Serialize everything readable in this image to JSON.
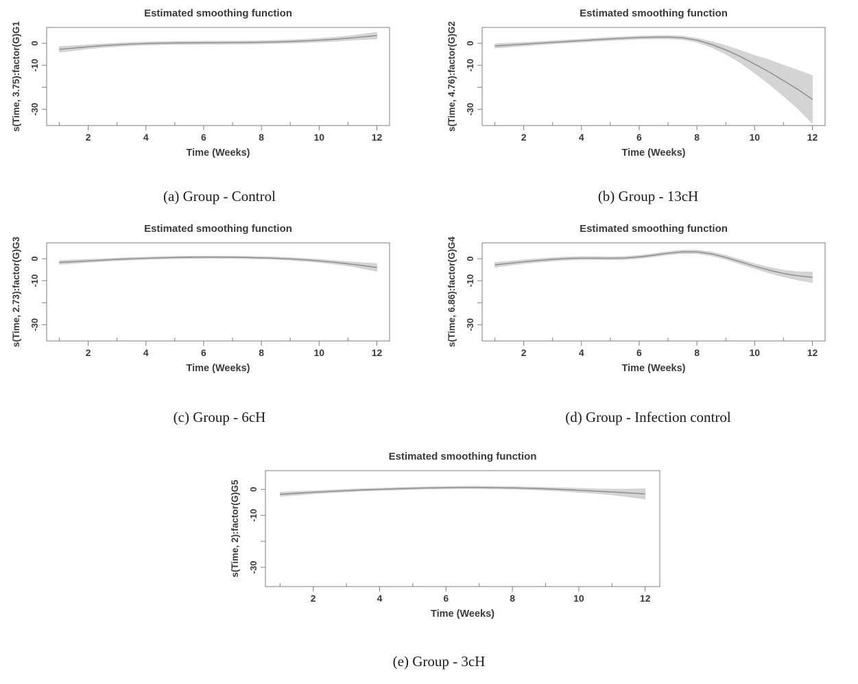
{
  "page": {
    "background": "#ffffff"
  },
  "styles": {
    "band_color": "#d4d4d4",
    "band_edge_color": "#cfcfcf",
    "line_color": "#8a8a8a",
    "axis_color": "#7d7d7d",
    "text_color": "#3a3a3a",
    "caption_color": "#1b1b1b"
  },
  "chart_data": [
    {
      "panel": "a",
      "type": "line",
      "title": "Estimated smoothing function",
      "xlabel": "Time (Weeks)",
      "ylabel": "s(Time, 3.75):factor(G)G1",
      "caption": "(a) Group - Control",
      "x": [
        1,
        1.5,
        2,
        2.5,
        3,
        3.5,
        4,
        4.5,
        5,
        5.5,
        6,
        6.5,
        7,
        7.5,
        8,
        8.5,
        9,
        9.5,
        10,
        10.5,
        11,
        11.5,
        12
      ],
      "y": [
        -2.8,
        -2.2,
        -1.6,
        -1.1,
        -0.7,
        -0.35,
        -0.1,
        0.05,
        0.15,
        0.2,
        0.25,
        0.25,
        0.3,
        0.35,
        0.45,
        0.6,
        0.8,
        1.05,
        1.4,
        1.8,
        2.3,
        2.9,
        3.5
      ],
      "ci_halfwidth": [
        1.3,
        1.1,
        0.9,
        0.8,
        0.75,
        0.72,
        0.7,
        0.7,
        0.7,
        0.7,
        0.7,
        0.7,
        0.7,
        0.7,
        0.7,
        0.72,
        0.75,
        0.78,
        0.8,
        0.9,
        1.0,
        1.2,
        1.5
      ],
      "xlim": [
        1,
        12
      ],
      "ylim": [
        -37.4,
        7.2
      ],
      "xticks_major": [
        2,
        4,
        6,
        8,
        10,
        12
      ],
      "xticks_minor": [
        1,
        3,
        5,
        7,
        9,
        11
      ],
      "yticks": [
        0,
        -10,
        -20,
        -30
      ],
      "ytick_labels": [
        "0",
        "-10",
        "",
        "-30"
      ],
      "grid": false,
      "legend": null
    },
    {
      "panel": "b",
      "type": "line",
      "title": "Estimated smoothing function",
      "xlabel": "Time (Weeks)",
      "ylabel": "s(Time, 4.76):factor(G)G2",
      "caption": "(b) Group - 13cH",
      "x": [
        1,
        1.5,
        2,
        2.5,
        3,
        3.5,
        4,
        4.5,
        5,
        5.5,
        6,
        6.5,
        7,
        7.5,
        8,
        8.5,
        9,
        9.5,
        10,
        10.5,
        11,
        11.5,
        12
      ],
      "y": [
        -1.2,
        -0.8,
        -0.4,
        0.0,
        0.4,
        0.8,
        1.2,
        1.6,
        2.0,
        2.3,
        2.6,
        2.75,
        2.8,
        2.5,
        1.4,
        -0.5,
        -3.0,
        -6.0,
        -9.5,
        -13.0,
        -17.0,
        -21.0,
        -25.5
      ],
      "ci_halfwidth": [
        1.0,
        0.9,
        0.8,
        0.75,
        0.7,
        0.7,
        0.7,
        0.7,
        0.7,
        0.7,
        0.7,
        0.72,
        0.75,
        0.8,
        0.9,
        1.3,
        2.0,
        2.8,
        4.0,
        5.5,
        7.0,
        8.8,
        10.8
      ],
      "xlim": [
        1,
        12
      ],
      "ylim": [
        -37.4,
        7.2
      ],
      "xticks_major": [
        2,
        4,
        6,
        8,
        10,
        12
      ],
      "xticks_minor": [
        1,
        3,
        5,
        7,
        9,
        11
      ],
      "yticks": [
        0,
        -10,
        -20,
        -30
      ],
      "ytick_labels": [
        "0",
        "-10",
        "",
        "-30"
      ],
      "grid": false,
      "legend": null
    },
    {
      "panel": "c",
      "type": "line",
      "title": "Estimated smoothing function",
      "xlabel": "Time (Weeks)",
      "ylabel": "s(Time, 2.73):factor(G)G3",
      "caption": "(c) Group - 6cH",
      "x": [
        1,
        1.5,
        2,
        2.5,
        3,
        3.5,
        4,
        4.5,
        5,
        5.5,
        6,
        6.5,
        7,
        7.5,
        8,
        8.5,
        9,
        9.5,
        10,
        10.5,
        11,
        11.5,
        12
      ],
      "y": [
        -1.7,
        -1.35,
        -1.0,
        -0.65,
        -0.3,
        -0.05,
        0.2,
        0.4,
        0.55,
        0.65,
        0.7,
        0.7,
        0.65,
        0.55,
        0.4,
        0.2,
        -0.1,
        -0.5,
        -1.0,
        -1.6,
        -2.3,
        -3.1,
        -4.0
      ],
      "ci_halfwidth": [
        0.9,
        0.8,
        0.7,
        0.65,
        0.6,
        0.57,
        0.55,
        0.55,
        0.55,
        0.55,
        0.55,
        0.55,
        0.55,
        0.55,
        0.55,
        0.57,
        0.6,
        0.65,
        0.7,
        0.8,
        0.95,
        1.3,
        1.8
      ],
      "xlim": [
        1,
        12
      ],
      "ylim": [
        -37.4,
        7.2
      ],
      "xticks_major": [
        2,
        4,
        6,
        8,
        10,
        12
      ],
      "xticks_minor": [
        1,
        3,
        5,
        7,
        9,
        11
      ],
      "yticks": [
        0,
        -10,
        -20,
        -30
      ],
      "ytick_labels": [
        "0",
        "-10",
        "",
        "-30"
      ],
      "grid": false,
      "legend": null
    },
    {
      "panel": "d",
      "type": "line",
      "title": "Estimated smoothing function",
      "xlabel": "Time (Weeks)",
      "ylabel": "s(Time, 6.86):factor(G)G4",
      "caption": "(d) Group - Infection control",
      "x": [
        1,
        1.5,
        2,
        2.5,
        3,
        3.5,
        4,
        4.5,
        5,
        5.5,
        6,
        6.5,
        7,
        7.5,
        8,
        8.5,
        9,
        9.5,
        10,
        10.5,
        11,
        11.5,
        12
      ],
      "y": [
        -2.8,
        -2.1,
        -1.4,
        -0.8,
        -0.3,
        0.1,
        0.25,
        0.25,
        0.2,
        0.3,
        0.8,
        1.6,
        2.5,
        3.1,
        3.1,
        2.2,
        0.6,
        -1.4,
        -3.4,
        -5.2,
        -6.7,
        -7.8,
        -8.5
      ],
      "ci_halfwidth": [
        1.1,
        0.95,
        0.85,
        0.8,
        0.75,
        0.72,
        0.7,
        0.7,
        0.7,
        0.7,
        0.7,
        0.72,
        0.75,
        0.78,
        0.8,
        0.85,
        0.9,
        1.0,
        1.1,
        1.3,
        1.5,
        1.9,
        2.4
      ],
      "xlim": [
        1,
        12
      ],
      "ylim": [
        -37.4,
        7.2
      ],
      "xticks_major": [
        2,
        4,
        6,
        8,
        10,
        12
      ],
      "xticks_minor": [
        1,
        3,
        5,
        7,
        9,
        11
      ],
      "yticks": [
        0,
        -10,
        -20,
        -30
      ],
      "ytick_labels": [
        "0",
        "-10",
        "",
        "-30"
      ],
      "grid": false,
      "legend": null
    },
    {
      "panel": "e",
      "type": "line",
      "title": "Estimated smoothing function",
      "xlabel": "Time (Weeks)",
      "ylabel": "s(Time, 2):factor(G)G5",
      "caption": "(e) Group - 3cH",
      "x": [
        1,
        1.5,
        2,
        2.5,
        3,
        3.5,
        4,
        4.5,
        5,
        5.5,
        6,
        6.5,
        7,
        7.5,
        8,
        8.5,
        9,
        9.5,
        10,
        10.5,
        11,
        11.5,
        12
      ],
      "y": [
        -1.9,
        -1.5,
        -1.15,
        -0.8,
        -0.5,
        -0.2,
        0.0,
        0.2,
        0.4,
        0.55,
        0.65,
        0.7,
        0.7,
        0.65,
        0.55,
        0.4,
        0.2,
        -0.05,
        -0.35,
        -0.7,
        -1.0,
        -1.4,
        -1.75
      ],
      "ci_halfwidth": [
        0.8,
        0.7,
        0.6,
        0.52,
        0.5,
        0.47,
        0.45,
        0.45,
        0.45,
        0.45,
        0.45,
        0.45,
        0.45,
        0.47,
        0.5,
        0.52,
        0.55,
        0.65,
        0.75,
        0.9,
        1.1,
        1.5,
        2.0
      ],
      "xlim": [
        1,
        12
      ],
      "ylim": [
        -37.4,
        7.2
      ],
      "xticks_major": [
        2,
        4,
        6,
        8,
        10,
        12
      ],
      "xticks_minor": [
        1,
        3,
        5,
        7,
        9,
        11
      ],
      "yticks": [
        0,
        -10,
        -20,
        -30
      ],
      "ytick_labels": [
        "0",
        "-10",
        "",
        "-30"
      ],
      "grid": false,
      "legend": null
    }
  ]
}
